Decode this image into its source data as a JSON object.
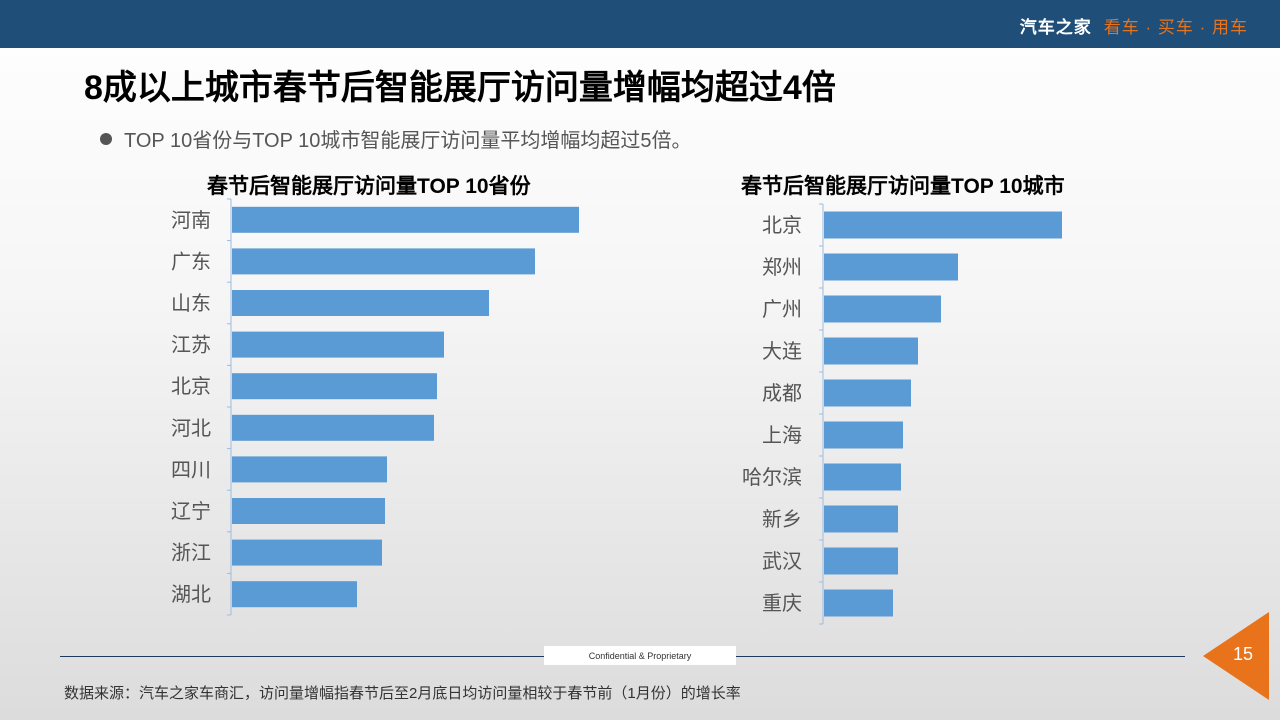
{
  "header": {
    "brand": "汽车之家",
    "slogan": "看车 · 买车 · 用车"
  },
  "title": "8成以上城市春节后智能展厅访问量增幅均超过4倍",
  "bullet": "TOP 10省份与TOP 10城市智能展厅访问量平均增幅均超过5倍。",
  "footer": {
    "confidential": "Confidential & Proprietary",
    "page": "15",
    "source": "数据来源：汽车之家车商汇，访问量增幅指春节后至2月底日均访问量相较于春节前（1月份）的增长率"
  },
  "colors": {
    "bar": "#5b9bd5",
    "header": "#1f4e79",
    "accent": "#e8731a"
  },
  "chart_data": [
    {
      "type": "bar",
      "orientation": "horizontal",
      "title": "春节后智能展厅访问量TOP 10省份",
      "categories": [
        "河南",
        "广东",
        "山东",
        "江苏",
        "北京",
        "河北",
        "四川",
        "辽宁",
        "浙江",
        "湖北"
      ],
      "values": [
        347,
        303,
        257,
        212,
        205,
        202,
        155,
        153,
        150,
        125
      ],
      "xlabel": "",
      "ylabel": "",
      "note": "relative values, no axis scale shown"
    },
    {
      "type": "bar",
      "orientation": "horizontal",
      "title": "春节后智能展厅访问量TOP 10城市",
      "categories": [
        "北京",
        "郑州",
        "广州",
        "大连",
        "成都",
        "上海",
        "哈尔滨",
        "新乡",
        "武汉",
        "重庆"
      ],
      "values": [
        238,
        134,
        117,
        94,
        87,
        79,
        77,
        74,
        74,
        69
      ],
      "xlabel": "",
      "ylabel": "",
      "note": "relative values, no axis scale shown"
    }
  ]
}
